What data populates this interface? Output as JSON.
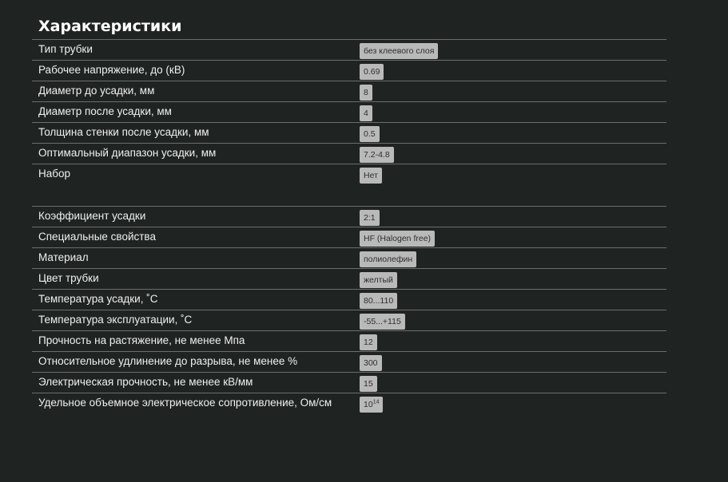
{
  "title": "Характеристики",
  "rows": [
    {
      "label": "Тип трубки",
      "value": "без клеевого слоя"
    },
    {
      "label": "Рабочее напряжение, до (кВ)",
      "value": "0.69"
    },
    {
      "label": "Диаметр до усадки, мм",
      "value": "8"
    },
    {
      "label": "Диаметр после усадки, мм",
      "value": "4"
    },
    {
      "label": "Толщина стенки после усадки, мм",
      "value": "0.5"
    },
    {
      "label": "Оптимальный диапазон усадки, мм",
      "value": "7.2-4.8"
    },
    {
      "label": "Набор",
      "value": "Нет"
    },
    {
      "label": "Коэффициент усадки",
      "value": "2:1"
    },
    {
      "label": "Специальные свойства",
      "value": "HF (Halogen free)"
    },
    {
      "label": "Материал",
      "value": "полиолефин"
    },
    {
      "label": "Цвет трубки",
      "value": "желтый"
    },
    {
      "label": "Температура усадки, ˚С",
      "value": "80...110"
    },
    {
      "label": "Температура эксплуатации, ˚С",
      "value": "-55...+115"
    },
    {
      "label": "Прочность на растяжение, не менее Мпа",
      "value": "12"
    },
    {
      "label": "Относительное удлинение до разрыва, не менее %",
      "value": "300"
    },
    {
      "label": "Электрическая прочность, не менее кВ/мм",
      "value": "15"
    },
    {
      "label": "Удельное объемное электрическое сопротивление, Ом/см",
      "value_base": "10",
      "value_exp": "14"
    }
  ]
}
